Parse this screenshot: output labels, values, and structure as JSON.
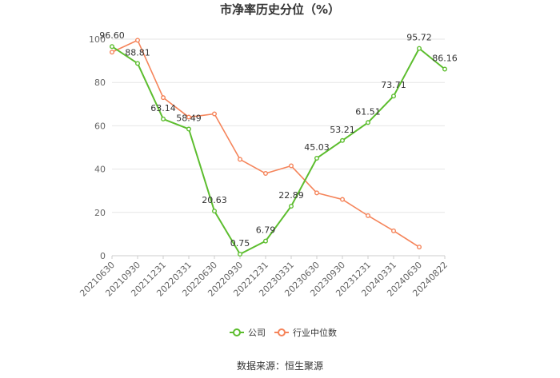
{
  "chart_data": {
    "type": "line",
    "title": "市净率历史分位（%）",
    "xlabel": "",
    "ylabel": "",
    "ylim": [
      0,
      100
    ],
    "yticks": [
      0,
      20,
      40,
      60,
      80,
      100
    ],
    "grid": true,
    "legend_position": "bottom",
    "categories": [
      "20210630",
      "20210930",
      "20211231",
      "20220331",
      "20220630",
      "20220930",
      "20221231",
      "20230331",
      "20230630",
      "20230930",
      "20231231",
      "20240331",
      "20240630",
      "20240822"
    ],
    "series": [
      {
        "name": "公司",
        "color": "#5cbd2e",
        "values": [
          96.6,
          88.81,
          63.14,
          58.49,
          20.63,
          0.75,
          6.79,
          22.89,
          45.03,
          53.21,
          61.51,
          73.71,
          95.72,
          86.16
        ],
        "labels": [
          "96.60",
          "88.81",
          "63.14",
          "58.49",
          "20.63",
          "0.75",
          "6.79",
          "22.89",
          "45.03",
          "53.21",
          "61.51",
          "73.71",
          "95.72",
          "86.16"
        ]
      },
      {
        "name": "行业中位数",
        "color": "#f5845a",
        "values": [
          94,
          99.5,
          73,
          64,
          65.5,
          44.5,
          38,
          41.5,
          29,
          26,
          18.5,
          11.5,
          4,
          null
        ]
      }
    ]
  },
  "source": "数据来源：恒生聚源"
}
